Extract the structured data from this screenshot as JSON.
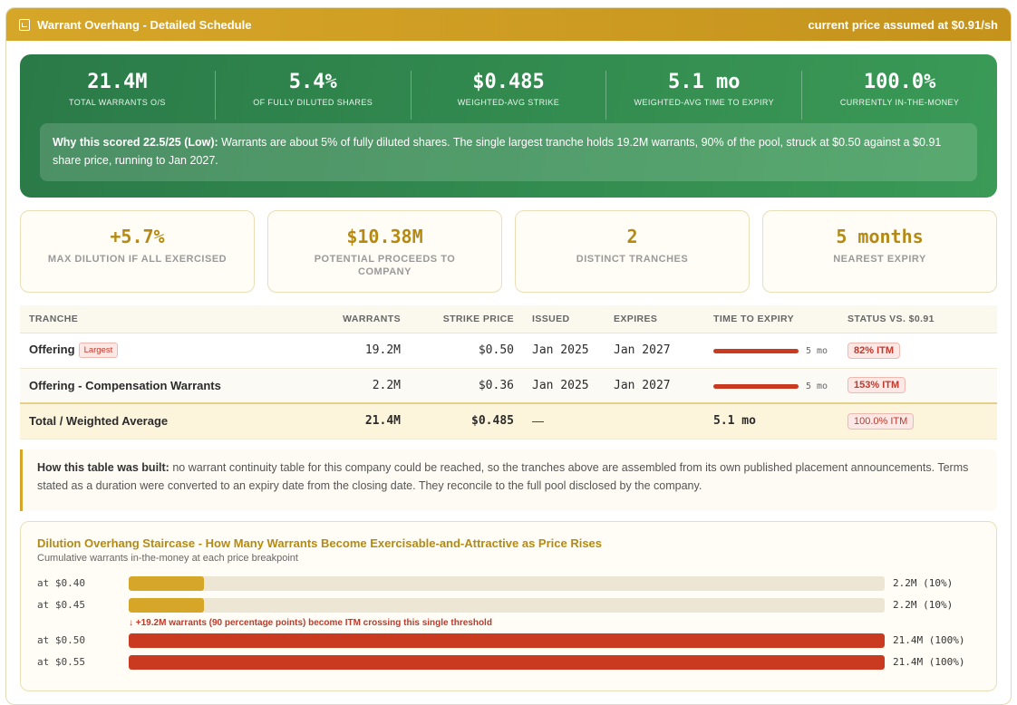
{
  "header": {
    "title": "Warrant Overhang - Detailed Schedule",
    "price_note": "current price assumed at $0.91/sh",
    "icon": "clipboard-icon"
  },
  "summary": {
    "stats": [
      {
        "value": "21.4M",
        "label": "TOTAL WARRANTS O/S"
      },
      {
        "value": "5.4%",
        "label": "OF FULLY DILUTED SHARES"
      },
      {
        "value": "$0.485",
        "label": "WEIGHTED-AVG STRIKE"
      },
      {
        "value": "5.1 mo",
        "label": "WEIGHTED-AVG TIME TO EXPIRY"
      },
      {
        "value": "100.0%",
        "label": "CURRENTLY IN-THE-MONEY"
      }
    ],
    "why_title": "Why this scored 22.5/25 (Low):",
    "why_text": " Warrants are about 5% of fully diluted shares. The single largest tranche holds 19.2M warrants, 90% of the pool, struck at $0.50 against a $0.91 share price, running to Jan 2027."
  },
  "cards": [
    {
      "value": "+5.7%",
      "label": "MAX DILUTION IF ALL EXERCISED"
    },
    {
      "value": "$10.38M",
      "label": "POTENTIAL PROCEEDS TO COMPANY"
    },
    {
      "value": "2",
      "label": "DISTINCT TRANCHES"
    },
    {
      "value": "5 months",
      "label": "NEAREST EXPIRY"
    }
  ],
  "table": {
    "headers": [
      "TRANCHE",
      "WARRANTS",
      "STRIKE PRICE",
      "ISSUED",
      "EXPIRES",
      "TIME TO EXPIRY",
      "STATUS VS. $0.91"
    ],
    "rows": [
      {
        "tranche": "Offering",
        "badge": "Largest",
        "warrants": "19.2M",
        "strike": "$0.50",
        "issued": "Jan 2025",
        "expires": "Jan 2027",
        "time": "5 mo",
        "status": "82% ITM"
      },
      {
        "tranche": "Offering - Compensation Warrants",
        "badge": "",
        "warrants": "2.2M",
        "strike": "$0.36",
        "issued": "Jan 2025",
        "expires": "Jan 2027",
        "time": "5 mo",
        "status": "153% ITM"
      }
    ],
    "total": {
      "label": "Total / Weighted Average",
      "warrants": "21.4M",
      "strike": "$0.485",
      "issued": "—",
      "time": "5.1 mo",
      "status": "100.0% ITM"
    }
  },
  "note": {
    "title": "How this table was built:",
    "text": " no warrant continuity table for this company could be reached, so the tranches above are assembled from its own published placement announcements. Terms stated as a duration were converted to an expiry date from the closing date. They reconcile to the full pool disclosed by the company."
  },
  "staircase": {
    "title": "Dilution Overhang Staircase - How Many Warrants Become Exercisable-and-Attractive as Price Rises",
    "subtitle": "Cumulative warrants in-the-money at each price breakpoint",
    "jump_note": "↓ +19.2M warrants (90 percentage points) become ITM crossing this single threshold",
    "colors": {
      "low": "#d6a629",
      "high": "#c93a20",
      "track": "#ede6d4"
    },
    "rows": [
      {
        "label": "at $0.40",
        "fraction": 0.1,
        "value": "2.2M (10%)"
      },
      {
        "label": "at $0.45",
        "fraction": 0.1,
        "value": "2.2M (10%)"
      },
      {
        "label": "at $0.50",
        "fraction": 1.0,
        "value": "21.4M (100%)"
      },
      {
        "label": "at $0.55",
        "fraction": 1.0,
        "value": "21.4M (100%)"
      }
    ]
  }
}
